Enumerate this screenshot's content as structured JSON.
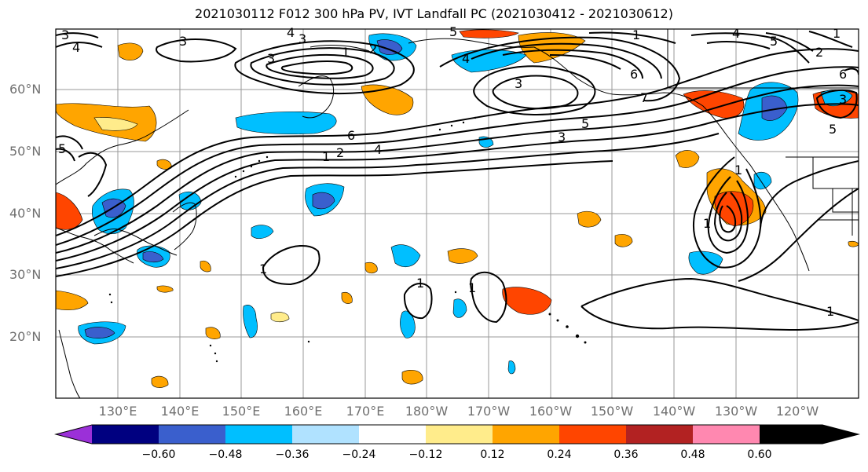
{
  "title": "2021030112 F012 300 hPa PV, IVT Landfall PC (2021030412 - 2021030612)",
  "map": {
    "lat_labels": [
      "60°N",
      "50°N",
      "40°N",
      "30°N",
      "20°N"
    ],
    "lon_labels": [
      "130°E",
      "140°E",
      "150°E",
      "160°E",
      "170°E",
      "180°W",
      "170°W",
      "160°W",
      "150°W",
      "140°W",
      "130°W",
      "120°W"
    ],
    "contour_labels": [
      "3",
      "4",
      "3",
      "3",
      "4",
      "3",
      "5",
      "1",
      "1",
      "2",
      "4",
      "6",
      "5",
      "6",
      "4",
      "3",
      "5",
      "2",
      "1",
      "7",
      "3",
      "6",
      "1",
      "2",
      "4",
      "5",
      "3",
      "5",
      "1",
      "1",
      "1",
      "1",
      "1",
      "1"
    ]
  },
  "colorbar": {
    "ticks": [
      "−0.60",
      "−0.48",
      "−0.36",
      "−0.24",
      "−0.12",
      "0.12",
      "0.24",
      "0.36",
      "0.48",
      "0.60"
    ],
    "colors": [
      "#9b30d8",
      "#000080",
      "#3a5fcd",
      "#00bfff",
      "#b0e2ff",
      "#ffffff",
      "#ffec8b",
      "#ffa500",
      "#ff4500",
      "#b22222",
      "#ff88b0"
    ]
  }
}
